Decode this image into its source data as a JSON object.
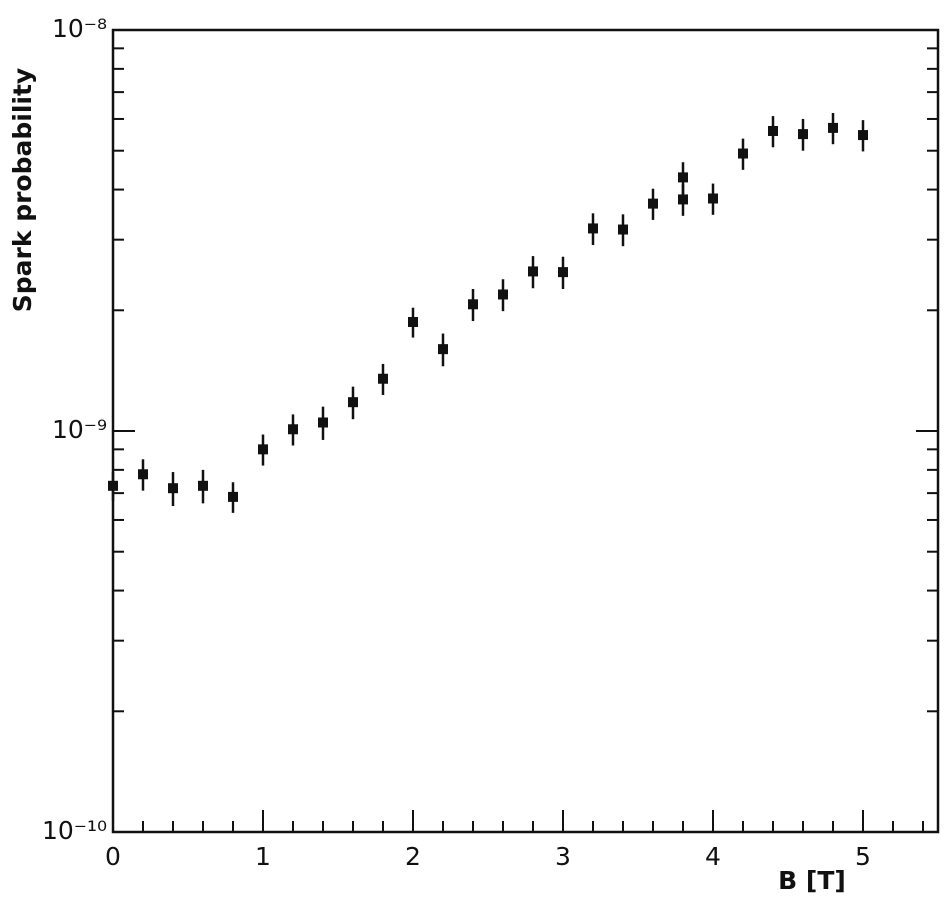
{
  "chart_data": {
    "type": "scatter",
    "x_label": "B [T]",
    "y_label": "Spark probability",
    "log_y": true,
    "color": "#111111",
    "x": [
      0,
      0.2,
      0.4,
      0.6,
      0.8,
      1.0,
      1.2,
      1.4,
      1.6,
      1.8,
      2.0,
      2.2,
      2.4,
      2.6,
      2.8,
      3.0,
      3.2,
      3.4,
      3.6,
      3.8,
      3.8,
      4.0,
      4.2,
      4.4,
      4.6,
      4.8,
      5.0
    ],
    "values": [
      7.3e-10,
      7.8e-10,
      7.2e-10,
      7.3e-10,
      6.85e-10,
      9e-10,
      1.01e-09,
      1.05e-09,
      1.18e-09,
      1.35e-09,
      1.87e-09,
      1.6e-09,
      2.07e-09,
      2.19e-09,
      2.5e-09,
      2.49e-09,
      3.2e-09,
      3.18e-09,
      3.69e-09,
      3.78e-09,
      4.29e-09,
      3.8e-09,
      4.92e-09,
      5.6e-09,
      5.5e-09,
      5.7e-09,
      5.47e-09
    ],
    "errors": [
      6e-11,
      7e-11,
      7e-11,
      7e-11,
      6e-11,
      8e-11,
      9e-11,
      1e-10,
      1.1e-10,
      1.2e-10,
      1.6e-10,
      1.5e-10,
      1.9e-10,
      2e-10,
      2.3e-10,
      2.3e-10,
      2.9e-10,
      2.9e-10,
      3.3e-10,
      3.4e-10,
      3.9e-10,
      3.4e-10,
      4.4e-10,
      5e-10,
      5e-10,
      5.1e-10,
      4.9e-10
    ],
    "xlim": [
      0,
      5.5
    ],
    "xticks": [
      0,
      1,
      2,
      3,
      4,
      5
    ],
    "xminorticks": [
      0.2,
      0.4,
      0.6,
      0.8,
      1.2,
      1.4,
      1.6,
      1.8,
      2.2,
      2.4,
      2.6,
      2.8,
      3.2,
      3.4,
      3.6,
      3.8,
      4.2,
      4.4,
      4.6,
      4.8,
      5.2,
      5.4
    ],
    "ylim": [
      1e-10,
      1e-08
    ],
    "yticks": [
      {
        "value": 1e-10,
        "label": "10⁻¹⁰"
      },
      {
        "value": 1e-09,
        "label": "10⁻⁹"
      },
      {
        "value": 1e-08,
        "label": "10⁻⁸"
      }
    ],
    "yminorticks": [
      2e-10,
      3e-10,
      4e-10,
      5e-10,
      6e-10,
      7e-10,
      8e-10,
      9e-10,
      2e-09,
      3e-09,
      4e-09,
      5e-09,
      6e-09,
      7e-09,
      8e-09,
      9e-09
    ]
  }
}
